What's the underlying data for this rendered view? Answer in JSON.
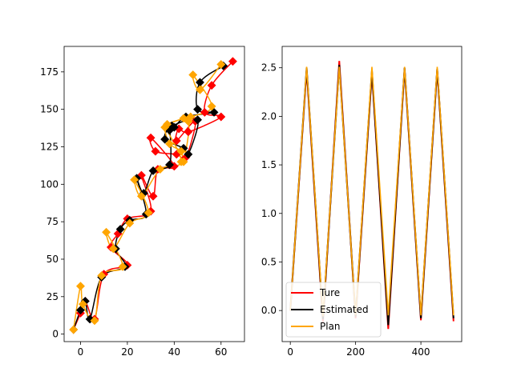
{
  "chart_data": [
    {
      "type": "line",
      "title": "",
      "xlabel": "",
      "ylabel": "",
      "xlim": [
        -7,
        70
      ],
      "ylim": [
        -5,
        192
      ],
      "xticks": [
        0,
        20,
        40,
        60
      ],
      "yticks": [
        0,
        25,
        50,
        75,
        100,
        125,
        150,
        175
      ],
      "grid": false,
      "series": [
        {
          "color": "#ff0000",
          "marker": "diamond",
          "x": [
            -3,
            0,
            2,
            6,
            10,
            20,
            13,
            16,
            20,
            30,
            26,
            31,
            33,
            40,
            30,
            32,
            41,
            45,
            49,
            41,
            42,
            46,
            60,
            53,
            56,
            65
          ],
          "y": [
            3,
            14,
            22,
            10,
            40,
            46,
            58,
            67,
            77,
            82,
            106,
            92,
            110,
            112,
            131,
            122,
            120,
            118,
            142,
            129,
            137,
            135,
            145,
            148,
            166,
            182
          ]
        },
        {
          "color": "#000000",
          "marker": "diamond",
          "x": [
            -3,
            0,
            2,
            4,
            9,
            19,
            15,
            17,
            21,
            28,
            24,
            27,
            31,
            38,
            38,
            36,
            44,
            46,
            50,
            39,
            40,
            45,
            57,
            50,
            51,
            61
          ],
          "y": [
            3,
            16,
            22,
            10,
            38,
            45,
            57,
            70,
            76,
            80,
            104,
            94,
            109,
            113,
            136,
            130,
            124,
            120,
            143,
            139,
            138,
            145,
            148,
            150,
            168,
            179
          ]
        },
        {
          "color": "#ffa500",
          "marker": "diamond",
          "x": [
            -3,
            0,
            1,
            6,
            9,
            18,
            11,
            14,
            21,
            29,
            23,
            26,
            34,
            43,
            36,
            38,
            43,
            44,
            46,
            37,
            44,
            47,
            56,
            48,
            51,
            60
          ],
          "y": [
            3,
            32,
            20,
            9,
            39,
            45,
            68,
            57,
            74,
            81,
            103,
            92,
            110,
            115,
            138,
            127,
            122,
            115,
            142,
            140,
            144,
            145,
            152,
            173,
            163,
            180
          ]
        }
      ]
    },
    {
      "type": "line",
      "title": "",
      "xlabel": "",
      "ylabel": "",
      "xlim": [
        -25,
        525
      ],
      "ylim": [
        -0.32,
        2.72
      ],
      "xticks": [
        0,
        200,
        400
      ],
      "yticks": [
        0.0,
        0.5,
        1.0,
        1.5,
        2.0,
        2.5
      ],
      "grid": false,
      "legend_position": "lower-left",
      "series": [
        {
          "name": "Ture",
          "color": "#ff0000",
          "x": [
            0,
            50,
            100,
            150,
            200,
            250,
            300,
            350,
            400,
            450,
            500
          ],
          "y": [
            0.0,
            2.48,
            -0.12,
            2.57,
            -0.08,
            2.45,
            -0.19,
            2.49,
            -0.1,
            2.48,
            -0.11
          ]
        },
        {
          "name": "Estimated",
          "color": "#000000",
          "x": [
            0,
            50,
            100,
            150,
            200,
            250,
            300,
            350,
            400,
            450,
            500
          ],
          "y": [
            0.0,
            2.5,
            -0.09,
            2.53,
            -0.06,
            2.47,
            -0.15,
            2.5,
            -0.08,
            2.49,
            -0.08
          ]
        },
        {
          "name": "Plan",
          "color": "#ffa500",
          "x": [
            0,
            50,
            100,
            150,
            200,
            250,
            300,
            350,
            400,
            450,
            500
          ],
          "y": [
            0.0,
            2.51,
            -0.06,
            2.51,
            -0.05,
            2.51,
            -0.05,
            2.51,
            -0.05,
            2.51,
            -0.05
          ]
        }
      ]
    }
  ]
}
